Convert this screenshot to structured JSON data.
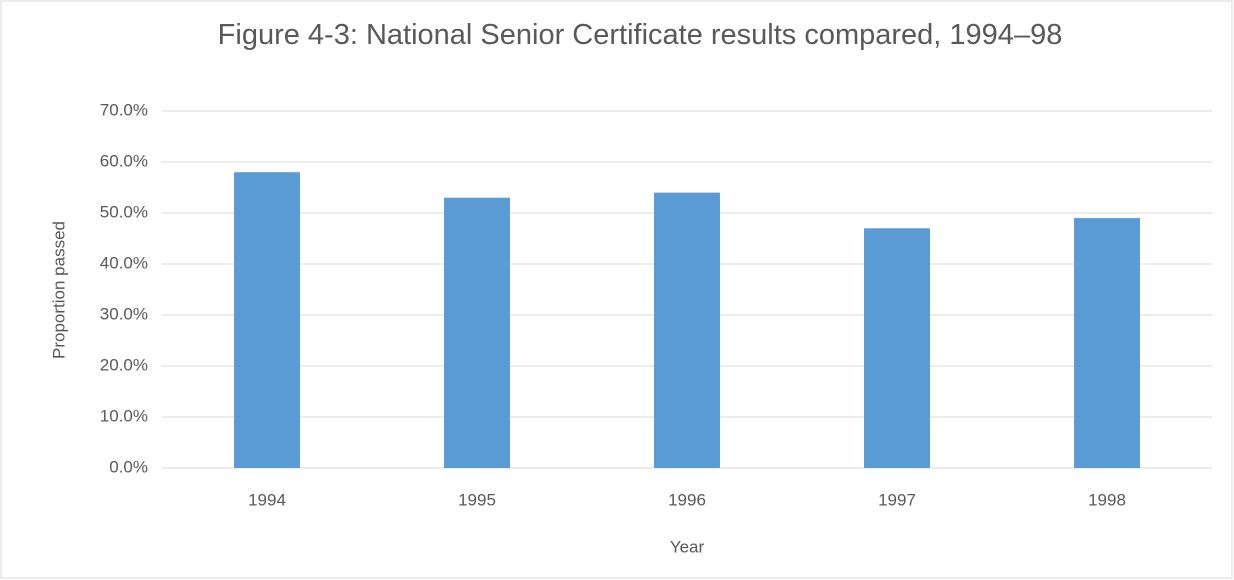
{
  "chart_data": {
    "type": "bar",
    "title": "Figure 4-3: National Senior Certificate results compared, 1994–98",
    "x_label": "Year",
    "y_label": "Proportion passed",
    "categories": [
      "1994",
      "1995",
      "1996",
      "1997",
      "1998"
    ],
    "values": [
      58,
      53,
      54,
      47,
      49
    ],
    "color": "#5b9bd5",
    "ylim": [
      0,
      70
    ],
    "yticks": [
      {
        "value": 0,
        "label": "0.0%"
      },
      {
        "value": 10,
        "label": "10.0%"
      },
      {
        "value": 20,
        "label": "20.0%"
      },
      {
        "value": 30,
        "label": "30.0%"
      },
      {
        "value": 40,
        "label": "40.0%"
      },
      {
        "value": 50,
        "label": "50.0%"
      },
      {
        "value": 60,
        "label": "60.0%"
      },
      {
        "value": 70,
        "label": "70.0%"
      }
    ],
    "grid": true
  }
}
